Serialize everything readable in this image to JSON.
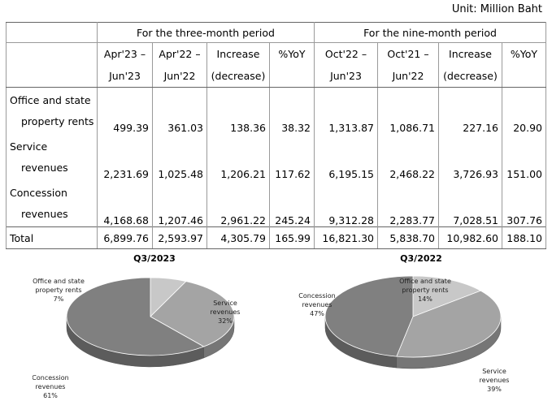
{
  "unit": "Unit: Million Baht",
  "table": {
    "group_headers": [
      "For the three-month period",
      "For the nine-month period"
    ],
    "column_headers": [
      [
        "Apr'23 –",
        "Jun'23"
      ],
      [
        "Apr'22 –",
        "Jun'22"
      ],
      [
        "Increase",
        "(decrease)"
      ],
      [
        "%YoY",
        ""
      ],
      [
        "Oct'22 –",
        "Jun'23"
      ],
      [
        "Oct'21 –",
        "Jun'22"
      ],
      [
        "Increase",
        "(decrease)"
      ],
      [
        "%YoY",
        ""
      ]
    ],
    "rows": [
      {
        "label_1": "Office and state",
        "label_2": "property rents",
        "values": [
          "499.39",
          "361.03",
          "138.36",
          "38.32",
          "1,313.87",
          "1,086.71",
          "227.16",
          "20.90"
        ]
      },
      {
        "label_1": "Service",
        "label_2": "revenues",
        "values": [
          "2,231.69",
          "1,025.48",
          "1,206.21",
          "117.62",
          "6,195.15",
          "2,468.22",
          "3,726.93",
          "151.00"
        ]
      },
      {
        "label_1": "Concession",
        "label_2": "revenues",
        "values": [
          "4,168.68",
          "1,207.46",
          "2,961.22",
          "245.24",
          "9,312.28",
          "2,283.77",
          "7,028.51",
          "307.76"
        ]
      }
    ],
    "total": {
      "label": "Total",
      "values": [
        "6,899.76",
        "2,593.97",
        "4,305.79",
        "165.99",
        "16,821.30",
        "5,838.70",
        "10,982.60",
        "188.10"
      ]
    }
  },
  "chart_data": [
    {
      "type": "pie",
      "title": "Q3/2023",
      "slices": [
        {
          "label_1": "Office and state",
          "label_2": "property rents",
          "pct_label": "7%",
          "value": 7,
          "color": "#c8c8c8"
        },
        {
          "label_1": "Service",
          "label_2": "revenues",
          "pct_label": "32%",
          "value": 32,
          "color": "#a4a4a4"
        },
        {
          "label_1": "Concession",
          "label_2": "revenues",
          "pct_label": "61%",
          "value": 61,
          "color": "#808080"
        }
      ]
    },
    {
      "type": "pie",
      "title": "Q3/2022",
      "slices": [
        {
          "label_1": "Office and state",
          "label_2": "property rents",
          "pct_label": "14%",
          "value": 14,
          "color": "#c8c8c8"
        },
        {
          "label_1": "Service",
          "label_2": "revenues",
          "pct_label": "39%",
          "value": 39,
          "color": "#a4a4a4"
        },
        {
          "label_1": "Concession",
          "label_2": "revenues",
          "pct_label": "47%",
          "value": 47,
          "color": "#808080"
        }
      ]
    }
  ]
}
